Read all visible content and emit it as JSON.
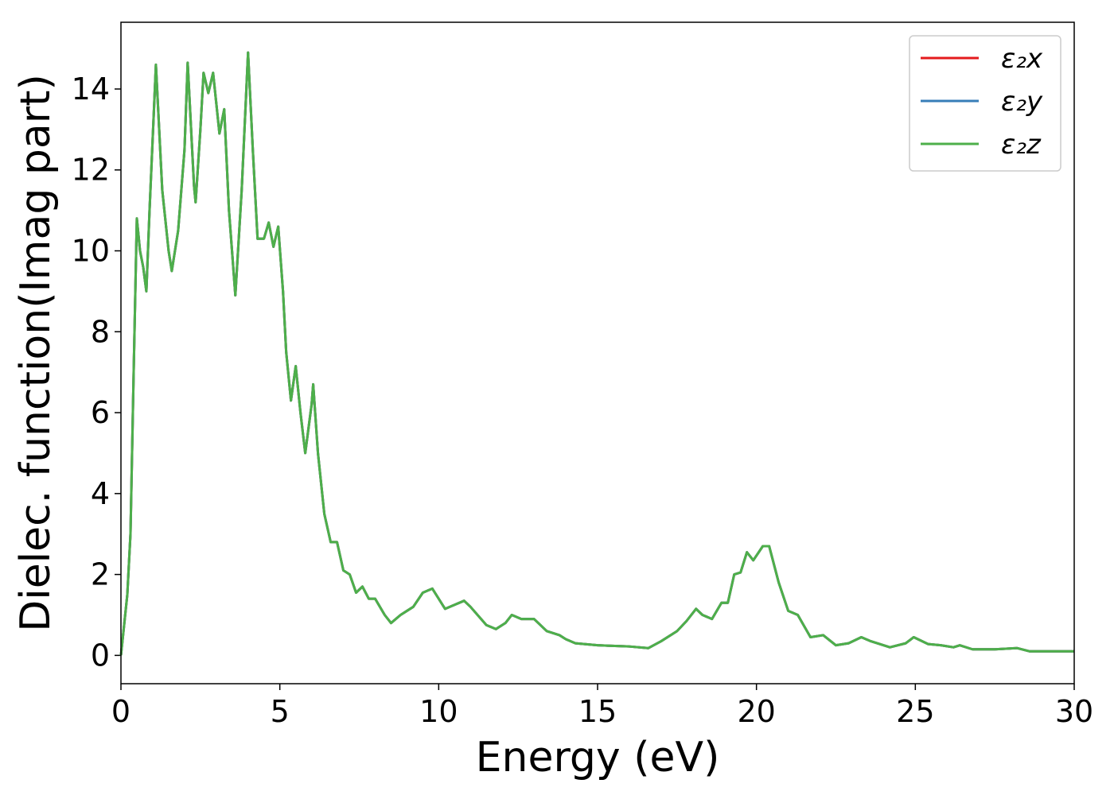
{
  "chart_data": {
    "type": "line",
    "xlabel": "Energy (eV)",
    "ylabel": "Dielec. function(Imag part)",
    "xlim": [
      0,
      30
    ],
    "ylim": [
      -0.7,
      15.65
    ],
    "xticks": [
      0,
      5,
      10,
      15,
      20,
      25,
      30
    ],
    "yticks": [
      0,
      2,
      4,
      6,
      8,
      10,
      12,
      14
    ],
    "grid": false,
    "legend": "upper right",
    "x": [
      0,
      0.2,
      0.3,
      0.4,
      0.5,
      0.6,
      0.7,
      0.8,
      0.9,
      1.1,
      1.3,
      1.5,
      1.6,
      1.8,
      2.0,
      2.1,
      2.3,
      2.35,
      2.5,
      2.6,
      2.75,
      2.9,
      3.1,
      3.25,
      3.4,
      3.6,
      3.8,
      4.0,
      4.15,
      4.3,
      4.5,
      4.65,
      4.8,
      4.95,
      5.1,
      5.2,
      5.35,
      5.5,
      5.65,
      5.8,
      6.0,
      6.05,
      6.2,
      6.4,
      6.6,
      6.8,
      7.0,
      7.2,
      7.4,
      7.6,
      7.8,
      8.0,
      8.3,
      8.5,
      8.8,
      9.2,
      9.5,
      9.8,
      10.0,
      10.2,
      10.5,
      10.8,
      11.0,
      11.5,
      11.8,
      12.1,
      12.3,
      12.6,
      13.0,
      13.4,
      13.8,
      14.0,
      14.3,
      15,
      16,
      16.6,
      17,
      17.5,
      17.8,
      18.1,
      18.3,
      18.6,
      18.9,
      19.1,
      19.3,
      19.5,
      19.7,
      19.9,
      20.2,
      20.4,
      20.7,
      21.0,
      21.3,
      21.7,
      22.1,
      22.5,
      22.9,
      23.3,
      23.6,
      24.2,
      24.7,
      24.95,
      25.4,
      25.8,
      26.2,
      26.4,
      26.8,
      27.5,
      28.2,
      28.6,
      29.2,
      30
    ],
    "series": [
      {
        "name": "ε₂x",
        "color": "#e41a1c",
        "values": [
          0,
          1.5,
          3,
          7,
          10.8,
          10,
          9.6,
          9.0,
          11,
          14.6,
          11.5,
          10,
          9.5,
          10.5,
          12.5,
          14.65,
          11.6,
          11.2,
          13,
          14.4,
          13.9,
          14.4,
          12.9,
          13.5,
          11,
          8.9,
          11.5,
          14.9,
          12.5,
          10.3,
          10.3,
          10.7,
          10.1,
          10.6,
          9,
          7.5,
          6.3,
          7.15,
          6,
          5,
          6.2,
          6.7,
          5,
          3.5,
          2.8,
          2.8,
          2.1,
          2.0,
          1.55,
          1.7,
          1.4,
          1.4,
          1.0,
          0.8,
          1.0,
          1.2,
          1.55,
          1.65,
          1.4,
          1.15,
          1.25,
          1.35,
          1.2,
          0.75,
          0.65,
          0.8,
          1.0,
          0.9,
          0.9,
          0.6,
          0.5,
          0.4,
          0.3,
          0.25,
          0.22,
          0.18,
          0.35,
          0.6,
          0.85,
          1.15,
          1.0,
          0.9,
          1.3,
          1.3,
          2.0,
          2.05,
          2.55,
          2.35,
          2.7,
          2.7,
          1.8,
          1.1,
          1.0,
          0.45,
          0.5,
          0.25,
          0.3,
          0.45,
          0.35,
          0.2,
          0.3,
          0.45,
          0.28,
          0.25,
          0.2,
          0.25,
          0.15,
          0.15,
          0.18,
          0.1,
          0.1,
          0.1
        ]
      },
      {
        "name": "ε₂y",
        "color": "#377eb8",
        "values": [
          0,
          1.5,
          3,
          7,
          10.8,
          10,
          9.6,
          9.0,
          11,
          14.6,
          11.5,
          10,
          9.5,
          10.5,
          12.5,
          14.65,
          11.6,
          11.2,
          13,
          14.4,
          13.9,
          14.4,
          12.9,
          13.5,
          11,
          8.9,
          11.5,
          14.9,
          12.5,
          10.3,
          10.3,
          10.7,
          10.1,
          10.6,
          9,
          7.5,
          6.3,
          7.15,
          6,
          5,
          6.2,
          6.7,
          5,
          3.5,
          2.8,
          2.8,
          2.1,
          2.0,
          1.55,
          1.7,
          1.4,
          1.4,
          1.0,
          0.8,
          1.0,
          1.2,
          1.55,
          1.65,
          1.4,
          1.15,
          1.25,
          1.35,
          1.2,
          0.75,
          0.65,
          0.8,
          1.0,
          0.9,
          0.9,
          0.6,
          0.5,
          0.4,
          0.3,
          0.25,
          0.22,
          0.18,
          0.35,
          0.6,
          0.85,
          1.15,
          1.0,
          0.9,
          1.3,
          1.3,
          2.0,
          2.05,
          2.55,
          2.35,
          2.7,
          2.7,
          1.8,
          1.1,
          1.0,
          0.45,
          0.5,
          0.25,
          0.3,
          0.45,
          0.35,
          0.2,
          0.3,
          0.45,
          0.28,
          0.25,
          0.2,
          0.25,
          0.15,
          0.15,
          0.18,
          0.1,
          0.1,
          0.1
        ]
      },
      {
        "name": "ε₂z",
        "color": "#4daf4a",
        "values": [
          0,
          1.5,
          3,
          7,
          10.8,
          10,
          9.6,
          9.0,
          11,
          14.6,
          11.5,
          10,
          9.5,
          10.5,
          12.5,
          14.65,
          11.6,
          11.2,
          13,
          14.4,
          13.9,
          14.4,
          12.9,
          13.5,
          11,
          8.9,
          11.5,
          14.9,
          12.5,
          10.3,
          10.3,
          10.7,
          10.1,
          10.6,
          9,
          7.5,
          6.3,
          7.15,
          6,
          5,
          6.2,
          6.7,
          5,
          3.5,
          2.8,
          2.8,
          2.1,
          2.0,
          1.55,
          1.7,
          1.4,
          1.4,
          1.0,
          0.8,
          1.0,
          1.2,
          1.55,
          1.65,
          1.4,
          1.15,
          1.25,
          1.35,
          1.2,
          0.75,
          0.65,
          0.8,
          1.0,
          0.9,
          0.9,
          0.6,
          0.5,
          0.4,
          0.3,
          0.25,
          0.22,
          0.18,
          0.35,
          0.6,
          0.85,
          1.15,
          1.0,
          0.9,
          1.3,
          1.3,
          2.0,
          2.05,
          2.55,
          2.35,
          2.7,
          2.7,
          1.8,
          1.1,
          1.0,
          0.45,
          0.5,
          0.25,
          0.3,
          0.45,
          0.35,
          0.2,
          0.3,
          0.45,
          0.28,
          0.25,
          0.2,
          0.25,
          0.15,
          0.15,
          0.18,
          0.1,
          0.1,
          0.1
        ]
      }
    ]
  }
}
